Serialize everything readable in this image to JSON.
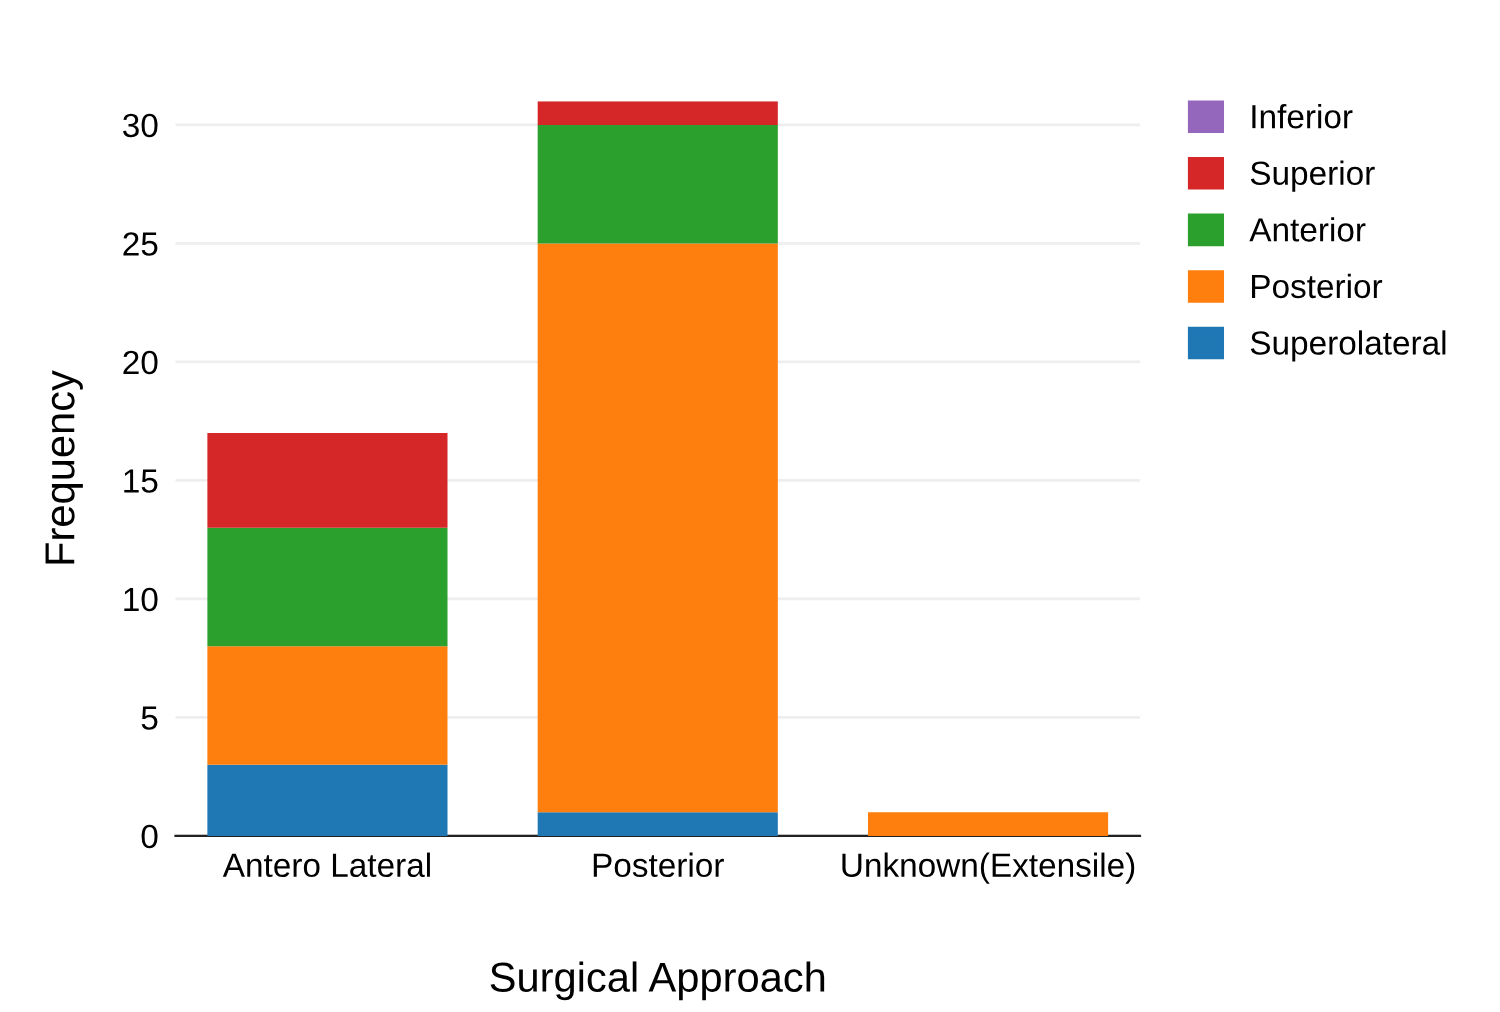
{
  "chart_data": {
    "type": "bar",
    "stacked": true,
    "xlabel": "Surgical Approach",
    "ylabel": "Frequency",
    "categories": [
      "Antero Lateral",
      "Posterior",
      "Unknown(Extensile)"
    ],
    "series": [
      {
        "name": "Superolateral",
        "color": "#1f77b4",
        "values": [
          3,
          1,
          0
        ]
      },
      {
        "name": "Posterior",
        "color": "#ff7f0e",
        "values": [
          5,
          24,
          1
        ]
      },
      {
        "name": "Anterior",
        "color": "#2ca02c",
        "values": [
          5,
          5,
          0
        ]
      },
      {
        "name": "Superior",
        "color": "#d62728",
        "values": [
          4,
          1,
          0
        ]
      },
      {
        "name": "Inferior",
        "color": "#9467bd",
        "values": [
          0,
          0,
          0
        ]
      }
    ],
    "ylim": [
      0,
      31
    ],
    "yticks": [
      0,
      5,
      10,
      15,
      20,
      25,
      30
    ],
    "grid": "y",
    "legend": "right"
  }
}
